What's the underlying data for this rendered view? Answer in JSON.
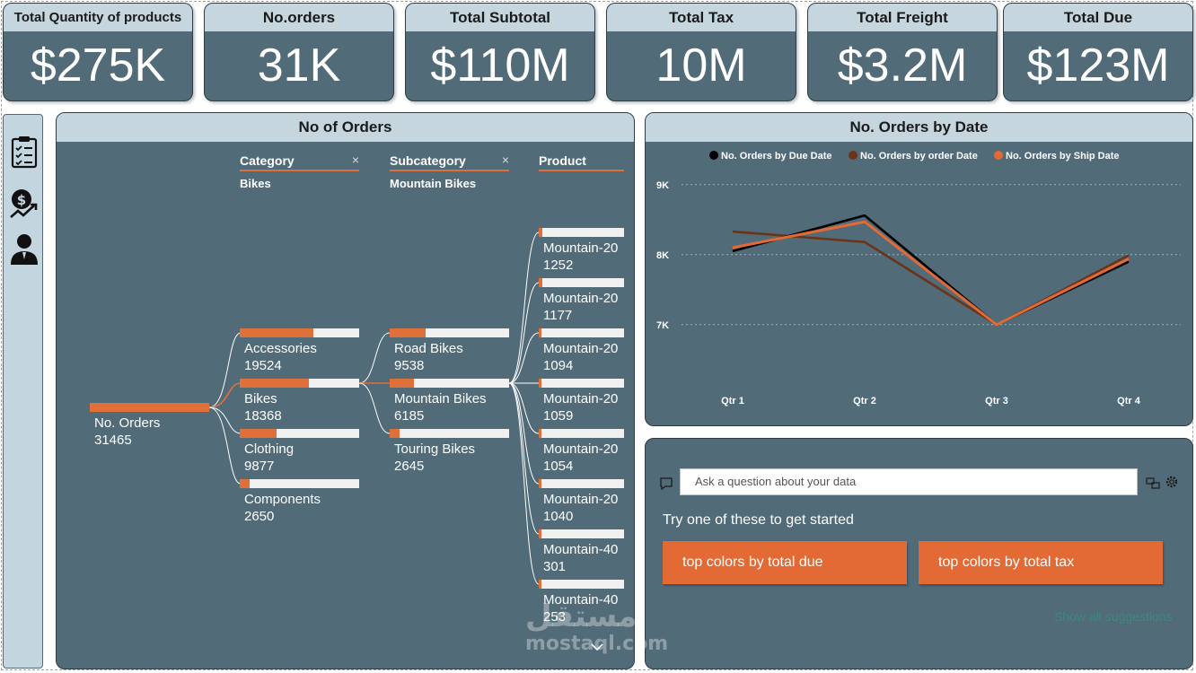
{
  "kpis": [
    {
      "title": "Total Quantity of products",
      "value": "$275K"
    },
    {
      "title": "No.orders",
      "value": "31K"
    },
    {
      "title": "Total Subtotal",
      "value": "$110M"
    },
    {
      "title": "Total Tax",
      "value": "10M"
    },
    {
      "title": "Total Freight",
      "value": "$3.2M"
    },
    {
      "title": "Total Due",
      "value": "$123M"
    }
  ],
  "nav": {
    "icons": [
      "checklist-icon",
      "money-growth-icon",
      "user-icon"
    ]
  },
  "decomp": {
    "title": "No of Orders",
    "levels": [
      {
        "name": "Category",
        "selected": "Bikes",
        "clear": "×"
      },
      {
        "name": "Subcategory",
        "selected": "Mountain Bikes",
        "clear": "×"
      },
      {
        "name": "Product"
      }
    ],
    "root": {
      "label": "No. Orders",
      "value": "31465"
    },
    "categories": [
      {
        "label": "Accessories",
        "value": "19524",
        "fraction": 0.62
      },
      {
        "label": "Bikes",
        "value": "18368",
        "fraction": 0.58
      },
      {
        "label": "Clothing",
        "value": "9877",
        "fraction": 0.31
      },
      {
        "label": "Components",
        "value": "2650",
        "fraction": 0.08
      }
    ],
    "subcategories": [
      {
        "label": "Road Bikes",
        "value": "9538",
        "fraction": 0.3
      },
      {
        "label": "Mountain Bikes",
        "value": "6185",
        "fraction": 0.2
      },
      {
        "label": "Touring Bikes",
        "value": "2645",
        "fraction": 0.08
      }
    ],
    "products": [
      {
        "label": "Mountain-20",
        "value": "1252",
        "fraction": 0.04
      },
      {
        "label": "Mountain-20",
        "value": "1177",
        "fraction": 0.04
      },
      {
        "label": "Mountain-20",
        "value": "1094",
        "fraction": 0.035
      },
      {
        "label": "Mountain-20",
        "value": "1059",
        "fraction": 0.034
      },
      {
        "label": "Mountain-20",
        "value": "1054",
        "fraction": 0.033
      },
      {
        "label": "Mountain-20",
        "value": "1040",
        "fraction": 0.033
      },
      {
        "label": "Mountain-40",
        "value": "301",
        "fraction": 0.01
      },
      {
        "label": "Mountain-40",
        "value": "253",
        "fraction": 0.008
      }
    ],
    "scroll_icon": "chevron-down-icon"
  },
  "line_chart_title": "No. Orders by Date",
  "chart_data": {
    "type": "line",
    "title": "No. Orders by Date",
    "categories": [
      "Qtr 1",
      "Qtr 2",
      "Qtr 3",
      "Qtr 4"
    ],
    "yticks": [
      7000,
      8000,
      9000
    ],
    "ytick_labels": [
      "7K",
      "8K",
      "9K"
    ],
    "ylim": [
      6600,
      9100
    ],
    "grid": true,
    "legend_position": "top",
    "series": [
      {
        "name": "No. Orders by Due Date",
        "color": "#000000",
        "values": [
          8050,
          8560,
          7000,
          7900
        ]
      },
      {
        "name": "No. Orders by order Date",
        "color": "#6b3418",
        "values": [
          8330,
          8180,
          7000,
          7990
        ]
      },
      {
        "name": "No. Orders by Ship Date",
        "color": "#e36a35",
        "values": [
          8100,
          8470,
          7000,
          7940
        ]
      }
    ]
  },
  "qa": {
    "placeholder": "Ask a question about your data",
    "prompt": "Try one of these to get started",
    "suggestions": [
      "top colors by total due",
      "top colors by total tax"
    ],
    "show_all": "Show all suggestions",
    "icons": [
      "chat-icon",
      "share-icon",
      "gear-icon"
    ]
  },
  "watermark": {
    "arabic": "مستقل",
    "latin": "mostaql.com"
  },
  "colors": {
    "panel": "#516b78",
    "header": "#c5d6df",
    "accent": "#e0703a"
  }
}
